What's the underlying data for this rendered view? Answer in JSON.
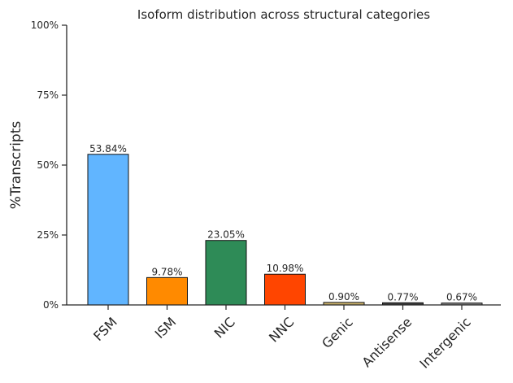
{
  "chart_data": {
    "type": "bar",
    "title": "Isoform distribution across structural categories",
    "xlabel": "",
    "ylabel": "%Transcripts",
    "ylim": [
      0,
      100
    ],
    "yticks": [
      0,
      25,
      50,
      75,
      100
    ],
    "ytick_labels": [
      "0%",
      "25%",
      "50%",
      "75%",
      "100%"
    ],
    "categories": [
      "FSM",
      "ISM",
      "NIC",
      "NNC",
      "Genic",
      "Antisense",
      "Intergenic"
    ],
    "values": [
      53.84,
      9.78,
      23.05,
      10.98,
      0.9,
      0.77,
      0.67
    ],
    "value_labels": [
      "53.84%",
      "9.78%",
      "23.05%",
      "10.98%",
      "0.90%",
      "0.77%",
      "0.67%"
    ],
    "colors": [
      "#61b5ff",
      "#ff8a00",
      "#2e8b57",
      "#ff4500",
      "#c9b06a",
      "#3f3f3f",
      "#8a8a8a"
    ],
    "grid": false,
    "legend": "none"
  }
}
